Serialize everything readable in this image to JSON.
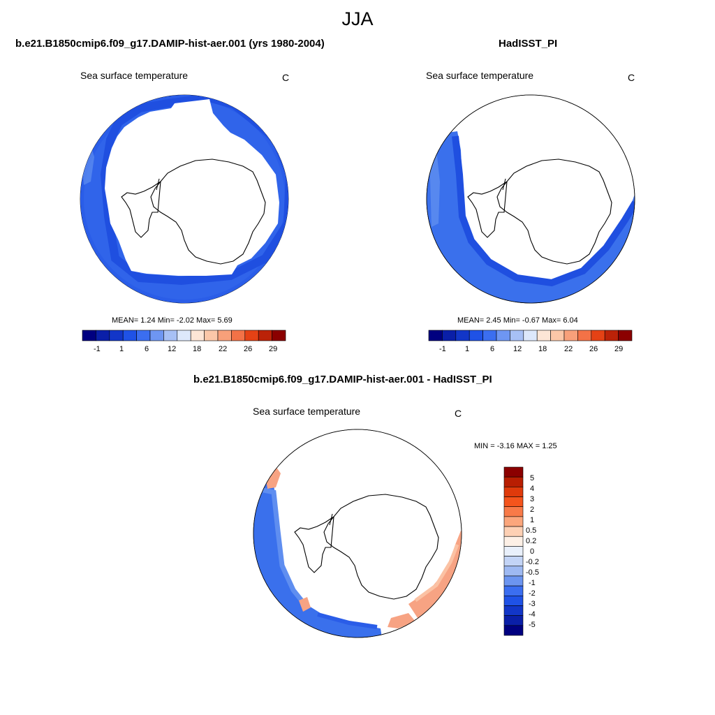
{
  "figure": {
    "title": "JJA"
  },
  "panels": {
    "model": {
      "title": "b.e21.B1850cmip6.f09_g17.DAMIP-hist-aer.001 (yrs 1980-2004)",
      "variable": "Sea surface temperature",
      "units": "C",
      "stats": "MEAN=   1.24  Min=  -2.02  Max=   5.69",
      "colorbar_labels": [
        "-1",
        "1",
        "6",
        "12",
        "18",
        "22",
        "26",
        "29"
      ]
    },
    "obs": {
      "title": "HadISST_PI",
      "variable": "Sea surface temperature",
      "units": "C",
      "stats": "MEAN=   2.45  Min=  -0.67  Max=   6.04",
      "colorbar_labels": [
        "-1",
        "1",
        "6",
        "12",
        "18",
        "22",
        "26",
        "29"
      ]
    },
    "diff": {
      "title": "b.e21.B1850cmip6.f09_g17.DAMIP-hist-aer.001 - HadISST_PI",
      "variable": "Sea surface temperature",
      "units": "C",
      "stats": "MIN =  -3.16 MAX =   1.25",
      "colorbar_labels": [
        "5",
        "4",
        "3",
        "2",
        "1",
        "0.5",
        "0.2",
        "0",
        "-0.2",
        "-0.5",
        "-1",
        "-2",
        "-3",
        "-4",
        "-5"
      ]
    }
  },
  "colors": {
    "full_palette": [
      "#000080",
      "#0a1fa8",
      "#1236c8",
      "#1f52e6",
      "#3b6ef0",
      "#6e96f2",
      "#a7c0f5",
      "#dde8fb",
      "#fde6d6",
      "#fbc7a8",
      "#f8a07a",
      "#f37247",
      "#e54215",
      "#bb2208",
      "#8b0000"
    ],
    "diff_palette_top_to_bottom": [
      "#8b0000",
      "#b81e02",
      "#df3a0b",
      "#f4541c",
      "#f87a48",
      "#fba67c",
      "#fdd0b4",
      "#fdf0e6",
      "#e9f0fb",
      "#c3d4f6",
      "#9eb9f2",
      "#6c95f0",
      "#3b6ef0",
      "#1f52e6",
      "#1236c8",
      "#0a1fa8",
      "#000080"
    ],
    "ocean_model": "#3064ea",
    "ocean_obs": "#3a70ec",
    "ocean_dark": "#1f4fe0",
    "warm_anomaly": "#f7a383"
  }
}
